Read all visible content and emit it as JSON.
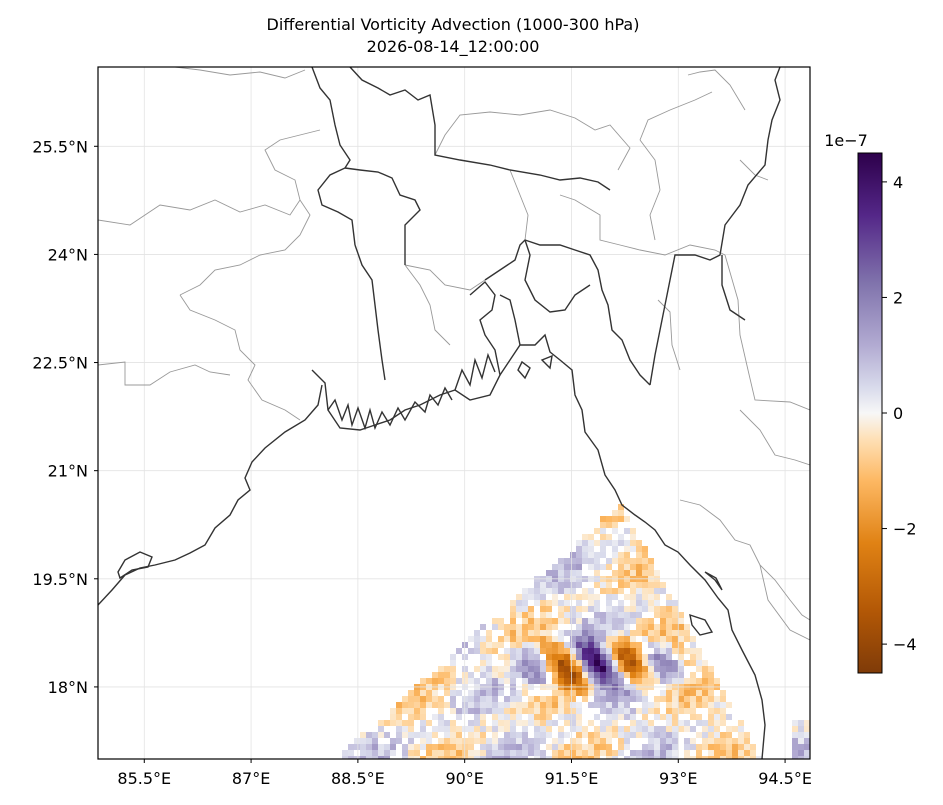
{
  "chart_data": {
    "type": "heatmap",
    "title": "Differential Vorticity Advection (1000-300 hPa)",
    "subtitle": "2026-08-14_12:00:00",
    "projection": "map (lon/lat with graticule)",
    "x_ticks": [
      "85.5°E",
      "87°E",
      "88.5°E",
      "90°E",
      "91.5°E",
      "93°E",
      "94.5°E"
    ],
    "y_ticks": [
      "25.5°N",
      "24°N",
      "22.5°N",
      "21°N",
      "19.5°N",
      "18°N"
    ],
    "x_tick_values": [
      85.5,
      87,
      88.5,
      90,
      91.5,
      93,
      94.5
    ],
    "y_tick_values": [
      25.5,
      24,
      22.5,
      21,
      19.5,
      18
    ],
    "xlim": [
      84.85,
      94.85
    ],
    "ylim": [
      17.0,
      26.6
    ],
    "grid": true,
    "colormap": "PuOr",
    "colorbar": {
      "offset_label": "1e−7",
      "ticks": [
        "4",
        "2",
        "0",
        "−2",
        "−4"
      ],
      "tick_values": [
        4,
        2,
        0,
        -2,
        -4
      ],
      "range": [
        -4.5,
        4.5
      ]
    },
    "field_notes": "Nonzero values only over the Bay of Bengal south of ~20.5°N and east of ~88°E; strongest features near 91–92.5°E, 18–18.7°N"
  },
  "colors": {
    "coastline": "#333333",
    "borders": "#999999",
    "grid": "#dddddd",
    "positive": "#2d004b",
    "negative": "#7f3b08"
  }
}
